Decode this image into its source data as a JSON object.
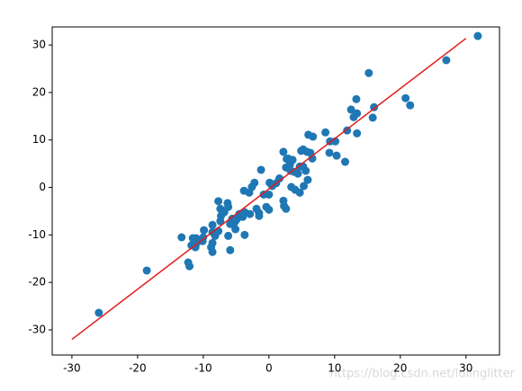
{
  "chart_data": {
    "type": "scatter",
    "x": [
      31.8,
      -25.9,
      -18.6,
      27,
      15.2,
      20.8,
      21.5,
      13.3,
      16.0,
      12.5,
      13.4,
      12.9,
      15.8,
      13.4,
      11.9,
      8.6,
      9.3,
      10.1,
      11.6,
      6.0,
      6.7,
      9.2,
      10.3,
      4.9,
      5.2,
      5.8,
      6.6,
      6.3,
      2.2,
      2.7,
      3.2,
      2.6,
      3.3,
      3.8,
      4.4,
      4.7,
      5.6,
      5.2,
      3.6,
      2.9,
      1.6,
      1.1,
      0.5,
      0,
      0.1,
      -1.2,
      -2.2,
      -2.6,
      -3.0,
      -3.8,
      -0.8,
      -0.4,
      0,
      -1.5,
      -1.9,
      2.2,
      2.3,
      2.6,
      3.4,
      4.0,
      4.7,
      5.3,
      5.9,
      -6.3,
      -6.2,
      -7.7,
      -7.4,
      -3.7,
      -4.0,
      -4.5,
      -4.9,
      -5.2,
      -5.9,
      -5.6,
      -2.9,
      -1.5,
      -3.7,
      -6.2,
      -5.9,
      -5.1,
      -7.4,
      -8.6,
      -8.6,
      -7.7,
      -8.6,
      -8.8,
      -8.6,
      -9.9,
      -10,
      -10.1,
      -8.2,
      -11.1,
      -11.6,
      -11.0,
      -11.8,
      -11.2,
      -13.3,
      -12.3,
      -12.1,
      -7.3,
      -6.8
    ],
    "y": [
      31.9,
      -26.4,
      -17.5,
      26.8,
      24.1,
      18.8,
      17.3,
      18.6,
      16.9,
      16.4,
      15.6,
      14.8,
      14.7,
      11.4,
      12.0,
      11.6,
      9.7,
      9.7,
      5.4,
      11.1,
      10.7,
      7.3,
      6.7,
      7.7,
      8.0,
      7.5,
      6.1,
      7.3,
      7.5,
      6.0,
      4.8,
      4.2,
      3.5,
      3.3,
      2.9,
      4.4,
      3.5,
      4.4,
      5.8,
      6.1,
      1.9,
      0.9,
      0.3,
      -1.5,
      1.0,
      3.7,
      1.0,
      0.1,
      -1.1,
      -0.7,
      -1.5,
      -4.1,
      -4.7,
      -5.4,
      -4.5,
      -2.8,
      -3.9,
      -4.5,
      0.1,
      -0.5,
      -1.1,
      0.3,
      1.6,
      -3.3,
      -4.1,
      -2.9,
      -4.5,
      -5.2,
      -6.2,
      -5.6,
      -6.7,
      -7.3,
      -7.7,
      -6.6,
      -5.6,
      -6.0,
      -10.0,
      -10.2,
      -13.2,
      -8.8,
      -7.1,
      -7.9,
      -9.4,
      -9.2,
      -11.7,
      -12.6,
      -13.6,
      -9.0,
      -10.5,
      -11.3,
      -10.2,
      -10.7,
      -10.7,
      -11.7,
      -12.2,
      -12.6,
      -10.5,
      -15.8,
      -16.6,
      -6.0,
      -5.2
    ],
    "color": "#1f77b4",
    "fit_line": {
      "x": [
        -30,
        30
      ],
      "y": [
        -32,
        31.4
      ],
      "color": "#e41a1c"
    },
    "xlim": [
      -33,
      35.1
    ],
    "ylim": [
      -35.3,
      33.8
    ],
    "xticks": [
      -30,
      -20,
      -10,
      0,
      10,
      20,
      30
    ],
    "yticks": [
      -30,
      -20,
      -10,
      0,
      10,
      20,
      30
    ],
    "watermark": "https://blog.csdn.net/lulinglitter"
  }
}
